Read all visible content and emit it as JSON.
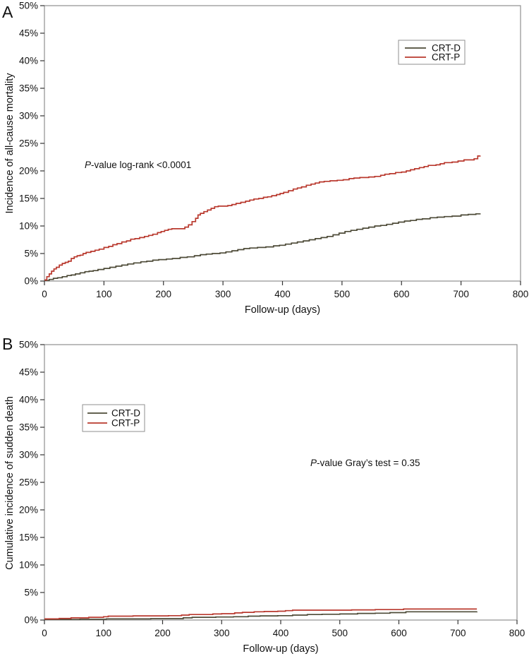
{
  "figure": {
    "background": "#ffffff",
    "border_color": "#8f8f8f",
    "tick_color": "#333333",
    "text_color": "#111111"
  },
  "chart_data": [
    {
      "type": "line",
      "step": true,
      "panel_label": "A",
      "title": "",
      "xlabel": "Follow-up (days)",
      "ylabel": "Incidence of all-cause mortality",
      "xlim": [
        0,
        800
      ],
      "ylim": [
        0,
        50
      ],
      "xticks": [
        0,
        100,
        200,
        300,
        400,
        500,
        600,
        700,
        800
      ],
      "yticks": [
        0,
        5,
        10,
        15,
        20,
        25,
        30,
        35,
        40,
        45,
        50
      ],
      "ytick_suffix": "%",
      "grid": false,
      "legend_position": "inside-top-right",
      "annotation": {
        "italic_prefix": "P",
        "text": "-value log-rank <0.0001"
      },
      "series": [
        {
          "name": "CRT-D",
          "color": "#4e4b38",
          "points": [
            [
              0,
              0.1
            ],
            [
              8,
              0.3
            ],
            [
              15,
              0.5
            ],
            [
              22,
              0.6
            ],
            [
              30,
              0.8
            ],
            [
              38,
              1.0
            ],
            [
              45,
              1.1
            ],
            [
              52,
              1.3
            ],
            [
              60,
              1.5
            ],
            [
              68,
              1.7
            ],
            [
              75,
              1.8
            ],
            [
              82,
              1.9
            ],
            [
              90,
              2.1
            ],
            [
              100,
              2.3
            ],
            [
              110,
              2.5
            ],
            [
              120,
              2.7
            ],
            [
              130,
              2.9
            ],
            [
              140,
              3.1
            ],
            [
              150,
              3.3
            ],
            [
              162,
              3.5
            ],
            [
              172,
              3.6
            ],
            [
              182,
              3.8
            ],
            [
              192,
              3.9
            ],
            [
              205,
              4.0
            ],
            [
              215,
              4.1
            ],
            [
              228,
              4.3
            ],
            [
              240,
              4.4
            ],
            [
              252,
              4.6
            ],
            [
              262,
              4.8
            ],
            [
              272,
              4.9
            ],
            [
              282,
              5.0
            ],
            [
              295,
              5.1
            ],
            [
              305,
              5.3
            ],
            [
              315,
              5.5
            ],
            [
              325,
              5.7
            ],
            [
              335,
              5.9
            ],
            [
              345,
              6.0
            ],
            [
              358,
              6.1
            ],
            [
              372,
              6.2
            ],
            [
              385,
              6.4
            ],
            [
              395,
              6.5
            ],
            [
              405,
              6.7
            ],
            [
              415,
              6.9
            ],
            [
              425,
              7.1
            ],
            [
              435,
              7.3
            ],
            [
              445,
              7.5
            ],
            [
              455,
              7.7
            ],
            [
              465,
              7.9
            ],
            [
              475,
              8.1
            ],
            [
              485,
              8.4
            ],
            [
              495,
              8.7
            ],
            [
              505,
              9.0
            ],
            [
              515,
              9.2
            ],
            [
              525,
              9.4
            ],
            [
              535,
              9.6
            ],
            [
              545,
              9.8
            ],
            [
              555,
              10.0
            ],
            [
              565,
              10.1
            ],
            [
              575,
              10.3
            ],
            [
              585,
              10.5
            ],
            [
              595,
              10.7
            ],
            [
              605,
              10.9
            ],
            [
              615,
              11.0
            ],
            [
              625,
              11.2
            ],
            [
              635,
              11.3
            ],
            [
              648,
              11.5
            ],
            [
              660,
              11.6
            ],
            [
              672,
              11.7
            ],
            [
              685,
              11.8
            ],
            [
              700,
              12.0
            ],
            [
              712,
              12.1
            ],
            [
              725,
              12.2
            ],
            [
              732,
              12.3
            ]
          ]
        },
        {
          "name": "CRT-P",
          "color": "#b9392e",
          "points": [
            [
              0,
              0.2
            ],
            [
              4,
              0.8
            ],
            [
              8,
              1.3
            ],
            [
              12,
              1.8
            ],
            [
              16,
              2.2
            ],
            [
              20,
              2.5
            ],
            [
              25,
              2.9
            ],
            [
              30,
              3.2
            ],
            [
              35,
              3.4
            ],
            [
              40,
              3.6
            ],
            [
              45,
              4.1
            ],
            [
              50,
              4.4
            ],
            [
              55,
              4.6
            ],
            [
              60,
              4.7
            ],
            [
              65,
              5.0
            ],
            [
              70,
              5.2
            ],
            [
              78,
              5.4
            ],
            [
              85,
              5.6
            ],
            [
              92,
              5.8
            ],
            [
              100,
              6.1
            ],
            [
              108,
              6.3
            ],
            [
              115,
              6.6
            ],
            [
              122,
              6.8
            ],
            [
              130,
              7.1
            ],
            [
              138,
              7.3
            ],
            [
              145,
              7.6
            ],
            [
              152,
              7.7
            ],
            [
              160,
              7.9
            ],
            [
              168,
              8.1
            ],
            [
              175,
              8.3
            ],
            [
              182,
              8.5
            ],
            [
              190,
              8.8
            ],
            [
              196,
              9.0
            ],
            [
              202,
              9.2
            ],
            [
              208,
              9.4
            ],
            [
              214,
              9.5
            ],
            [
              228,
              9.5
            ],
            [
              236,
              9.8
            ],
            [
              242,
              10.2
            ],
            [
              248,
              10.8
            ],
            [
              254,
              11.4
            ],
            [
              258,
              12.0
            ],
            [
              262,
              12.3
            ],
            [
              268,
              12.6
            ],
            [
              274,
              12.9
            ],
            [
              280,
              13.2
            ],
            [
              286,
              13.5
            ],
            [
              292,
              13.6
            ],
            [
              308,
              13.7
            ],
            [
              315,
              13.9
            ],
            [
              322,
              14.1
            ],
            [
              330,
              14.3
            ],
            [
              338,
              14.5
            ],
            [
              345,
              14.7
            ],
            [
              352,
              14.9
            ],
            [
              360,
              15.0
            ],
            [
              368,
              15.2
            ],
            [
              375,
              15.3
            ],
            [
              382,
              15.5
            ],
            [
              390,
              15.7
            ],
            [
              396,
              15.9
            ],
            [
              402,
              16.1
            ],
            [
              410,
              16.4
            ],
            [
              418,
              16.7
            ],
            [
              425,
              16.9
            ],
            [
              432,
              17.1
            ],
            [
              440,
              17.4
            ],
            [
              448,
              17.6
            ],
            [
              455,
              17.8
            ],
            [
              462,
              18.0
            ],
            [
              470,
              18.1
            ],
            [
              480,
              18.2
            ],
            [
              492,
              18.3
            ],
            [
              502,
              18.4
            ],
            [
              512,
              18.6
            ],
            [
              520,
              18.7
            ],
            [
              530,
              18.8
            ],
            [
              545,
              18.9
            ],
            [
              555,
              19.0
            ],
            [
              565,
              19.2
            ],
            [
              572,
              19.4
            ],
            [
              580,
              19.5
            ],
            [
              590,
              19.7
            ],
            [
              600,
              19.8
            ],
            [
              608,
              20.0
            ],
            [
              615,
              20.2
            ],
            [
              622,
              20.4
            ],
            [
              630,
              20.6
            ],
            [
              638,
              20.8
            ],
            [
              645,
              21.0
            ],
            [
              658,
              21.1
            ],
            [
              665,
              21.3
            ],
            [
              672,
              21.5
            ],
            [
              685,
              21.6
            ],
            [
              695,
              21.8
            ],
            [
              705,
              22.0
            ],
            [
              715,
              22.0
            ],
            [
              722,
              22.2
            ],
            [
              728,
              22.7
            ],
            [
              732,
              22.8
            ]
          ]
        }
      ]
    },
    {
      "type": "line",
      "step": true,
      "panel_label": "B",
      "title": "",
      "xlabel": "Follow-up (days)",
      "ylabel": "Cumulative incidence of sudden death",
      "xlim": [
        0,
        800
      ],
      "ylim": [
        0,
        50
      ],
      "xticks": [
        0,
        100,
        200,
        300,
        400,
        500,
        600,
        700,
        800
      ],
      "yticks": [
        0,
        5,
        10,
        15,
        20,
        25,
        30,
        35,
        40,
        45,
        50
      ],
      "ytick_suffix": "%",
      "grid": false,
      "legend_position": "inside-upper-left",
      "annotation": {
        "italic_prefix": "P",
        "text": "-value Gray’s test = 0.35"
      },
      "series": [
        {
          "name": "CRT-D",
          "color": "#4e4b38",
          "points": [
            [
              0,
              0.1
            ],
            [
              60,
              0.15
            ],
            [
              105,
              0.2
            ],
            [
              180,
              0.25
            ],
            [
              235,
              0.4
            ],
            [
              250,
              0.5
            ],
            [
              290,
              0.55
            ],
            [
              320,
              0.6
            ],
            [
              345,
              0.7
            ],
            [
              365,
              0.75
            ],
            [
              395,
              0.8
            ],
            [
              420,
              0.9
            ],
            [
              445,
              1.0
            ],
            [
              470,
              1.05
            ],
            [
              500,
              1.1
            ],
            [
              530,
              1.2
            ],
            [
              560,
              1.25
            ],
            [
              585,
              1.35
            ],
            [
              612,
              1.5
            ],
            [
              732,
              1.55
            ]
          ]
        },
        {
          "name": "CRT-P",
          "color": "#b9392e",
          "points": [
            [
              0,
              0.2
            ],
            [
              25,
              0.3
            ],
            [
              45,
              0.4
            ],
            [
              75,
              0.5
            ],
            [
              100,
              0.6
            ],
            [
              108,
              0.7
            ],
            [
              150,
              0.75
            ],
            [
              210,
              0.8
            ],
            [
              232,
              0.9
            ],
            [
              245,
              1.0
            ],
            [
              285,
              1.1
            ],
            [
              300,
              1.15
            ],
            [
              322,
              1.3
            ],
            [
              335,
              1.4
            ],
            [
              355,
              1.5
            ],
            [
              372,
              1.55
            ],
            [
              395,
              1.6
            ],
            [
              408,
              1.7
            ],
            [
              420,
              1.8
            ],
            [
              520,
              1.85
            ],
            [
              560,
              1.9
            ],
            [
              608,
              2.0
            ],
            [
              732,
              2.0
            ]
          ]
        }
      ]
    }
  ]
}
